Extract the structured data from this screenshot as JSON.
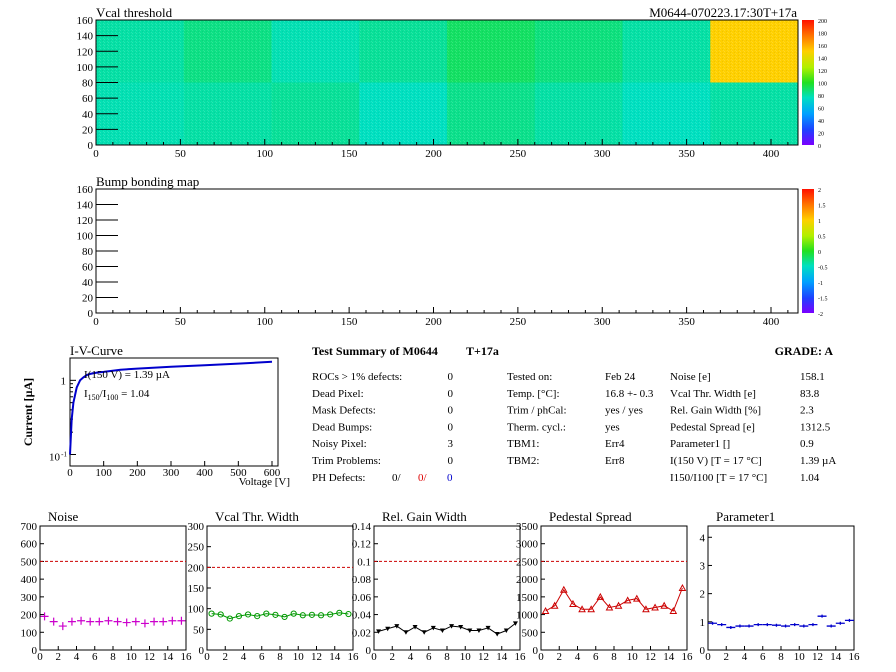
{
  "header": {
    "module_id": "M0644-070223.17:30T+17a"
  },
  "vcal_map": {
    "title": "Vcal threshold",
    "x_ticks": [
      "0",
      "50",
      "100",
      "150",
      "200",
      "250",
      "300",
      "350",
      "400"
    ],
    "y_ticks": [
      "0",
      "20",
      "40",
      "60",
      "80",
      "100",
      "120",
      "140",
      "160"
    ],
    "scale_ticks": [
      "0",
      "20",
      "40",
      "60",
      "80",
      "100",
      "120",
      "140",
      "160",
      "180",
      "200"
    ]
  },
  "bump_map": {
    "title": "Bump bonding map",
    "x_ticks": [
      "0",
      "50",
      "100",
      "150",
      "200",
      "250",
      "300",
      "350",
      "400"
    ],
    "y_ticks": [
      "0",
      "20",
      "40",
      "60",
      "80",
      "100",
      "120",
      "140",
      "160"
    ],
    "scale_ticks": [
      "-2",
      "-1.5",
      "-1",
      "-0.5",
      "0",
      "0.5",
      "1",
      "1.5",
      "2"
    ]
  },
  "iv_curve": {
    "title": "I-V-Curve",
    "ylabel": "Current [µA]",
    "xlabel": "Voltage [V]",
    "x_ticks": [
      "0",
      "100",
      "200",
      "300",
      "400",
      "500",
      "600"
    ],
    "y_tick_labels": [
      "10",
      "-1",
      "1"
    ],
    "annotation1": "I(150 V) = 1.39 µA",
    "annotation2_a": "I",
    "annotation2_sub1": "150",
    "annotation2_b": "/I",
    "annotation2_sub2": "100",
    "annotation2_c": " =  1.04"
  },
  "summary": {
    "title": "Test Summary of M0644",
    "tag": "T+17a",
    "grade": "GRADE:  A",
    "defects": [
      {
        "label": "ROCs > 1% defects:",
        "value": "0"
      },
      {
        "label": "Dead Pixel:",
        "value": "0"
      },
      {
        "label": "Mask Defects:",
        "value": "0"
      },
      {
        "label": "Dead Bumps:",
        "value": "0"
      },
      {
        "label": "Noisy Pixel:",
        "value": "3"
      },
      {
        "label": "Trim Problems:",
        "value": "0"
      }
    ],
    "ph_label": "PH Defects:",
    "ph_values": [
      "0/",
      "0/",
      "0"
    ],
    "info": [
      {
        "label": "Tested on:",
        "value": "Feb 24"
      },
      {
        "label": "Temp. [°C]:",
        "value": "16.8 +- 0.3"
      },
      {
        "label": "Trim / phCal:",
        "value": "yes / yes"
      },
      {
        "label": "Therm. cycl.:",
        "value": "yes"
      },
      {
        "label": "TBM1:",
        "value": "Err4"
      },
      {
        "label": "TBM2:",
        "value": "Err8"
      }
    ],
    "results": [
      {
        "label": "Noise [e]",
        "value": "158.1"
      },
      {
        "label": "Vcal Thr. Width [e]",
        "value": "83.8"
      },
      {
        "label": "Rel. Gain Width [%]",
        "value": "2.3"
      },
      {
        "label": "Pedestal Spread [e]",
        "value": "1312.5"
      },
      {
        "label": "Parameter1 []",
        "value": "0.9"
      },
      {
        "label": "I(150 V) [T = 17 °C]",
        "value": "1.39 µA"
      },
      {
        "label": "I150/I100 [T = 17 °C]",
        "value": "1.04"
      }
    ]
  },
  "chart_data": [
    {
      "type": "heatmap",
      "title": "Vcal threshold",
      "xlim": [
        0,
        416
      ],
      "ylim": [
        0,
        160
      ],
      "zlim": [
        0,
        200
      ],
      "roc_mean_values": [
        [
          80,
          85,
          78,
          82,
          90,
          86,
          80,
          150
        ],
        [
          78,
          80,
          82,
          76,
          84,
          80,
          76,
          80
        ]
      ]
    },
    {
      "type": "heatmap",
      "title": "Bump bonding map",
      "xlim": [
        0,
        416
      ],
      "ylim": [
        0,
        160
      ],
      "zlim": [
        -2,
        2
      ],
      "values": "empty"
    },
    {
      "type": "line",
      "title": "I-V-Curve",
      "xlabel": "Voltage [V]",
      "ylabel": "Current [µA]",
      "yscale": "log",
      "xlim": [
        0,
        600
      ],
      "ylim": [
        0.07,
        2
      ],
      "x": [
        0,
        5,
        10,
        20,
        30,
        40,
        50,
        60,
        80,
        100,
        150,
        200,
        300,
        400,
        500,
        600
      ],
      "y": [
        0.1,
        0.3,
        0.5,
        0.8,
        1.0,
        1.1,
        1.18,
        1.22,
        1.27,
        1.3,
        1.39,
        1.44,
        1.52,
        1.6,
        1.68,
        1.78
      ]
    },
    {
      "type": "scatter",
      "title": "Noise",
      "xlim": [
        0,
        16
      ],
      "ylim": [
        0,
        700
      ],
      "threshold": 500,
      "color": "#cc00cc",
      "marker": "cross",
      "x": [
        0,
        1,
        2,
        3,
        4,
        5,
        6,
        7,
        8,
        9,
        10,
        11,
        12,
        13,
        14,
        15
      ],
      "y": [
        190,
        160,
        135,
        160,
        165,
        160,
        160,
        165,
        160,
        155,
        160,
        150,
        160,
        160,
        165,
        165
      ]
    },
    {
      "type": "scatter",
      "title": "Vcal Thr. Width",
      "xlim": [
        0,
        16
      ],
      "ylim": [
        0,
        300
      ],
      "threshold": 200,
      "color": "#009900",
      "marker": "circle",
      "x": [
        0,
        1,
        2,
        3,
        4,
        5,
        6,
        7,
        8,
        9,
        10,
        11,
        12,
        13,
        14,
        15
      ],
      "y": [
        88,
        86,
        76,
        82,
        86,
        82,
        88,
        85,
        80,
        88,
        84,
        85,
        84,
        86,
        90,
        87
      ]
    },
    {
      "type": "scatter",
      "title": "Rel. Gain Width",
      "xlim": [
        0,
        16
      ],
      "ylim": [
        0,
        0.14
      ],
      "threshold": 0.1,
      "color": "#000000",
      "marker": "triangle-down",
      "x": [
        0,
        1,
        2,
        3,
        4,
        5,
        6,
        7,
        8,
        9,
        10,
        11,
        12,
        13,
        14,
        15
      ],
      "y": [
        0.021,
        0.024,
        0.027,
        0.02,
        0.026,
        0.02,
        0.025,
        0.022,
        0.027,
        0.026,
        0.022,
        0.022,
        0.025,
        0.018,
        0.022,
        0.03
      ]
    },
    {
      "type": "scatter",
      "title": "Pedestal Spread",
      "xlim": [
        0,
        16
      ],
      "ylim": [
        0,
        3500
      ],
      "threshold": 2500,
      "color": "#cc0000",
      "marker": "triangle-up",
      "x": [
        0,
        1,
        2,
        3,
        4,
        5,
        6,
        7,
        8,
        9,
        10,
        11,
        12,
        13,
        14,
        15
      ],
      "y": [
        1100,
        1250,
        1700,
        1300,
        1150,
        1150,
        1500,
        1200,
        1250,
        1400,
        1450,
        1150,
        1200,
        1250,
        1100,
        1750
      ]
    },
    {
      "type": "scatter",
      "title": "Parameter1",
      "xlim": [
        0,
        16
      ],
      "ylim": [
        0,
        4.4
      ],
      "threshold": null,
      "color": "#0000cc",
      "marker": "hbar",
      "x": [
        0,
        1,
        2,
        3,
        4,
        5,
        6,
        7,
        8,
        9,
        10,
        11,
        12,
        13,
        14,
        15
      ],
      "y": [
        0.95,
        0.9,
        0.8,
        0.85,
        0.85,
        0.9,
        0.9,
        0.88,
        0.85,
        0.9,
        0.85,
        0.9,
        1.2,
        0.85,
        0.95,
        1.05
      ]
    }
  ],
  "small_plots": [
    {
      "title": "Noise",
      "y_ticks": [
        "0",
        "100",
        "200",
        "300",
        "400",
        "500",
        "600",
        "700"
      ]
    },
    {
      "title": "Vcal Thr. Width",
      "y_ticks": [
        "0",
        "50",
        "100",
        "150",
        "200",
        "250",
        "300"
      ]
    },
    {
      "title": "Rel. Gain Width",
      "y_ticks": [
        "0",
        "0.02",
        "0.04",
        "0.06",
        "0.08",
        "0.1",
        "0.12",
        "0.14"
      ]
    },
    {
      "title": "Pedestal Spread",
      "y_ticks": [
        "0",
        "500",
        "1000",
        "1500",
        "2000",
        "2500",
        "3000",
        "3500"
      ]
    },
    {
      "title": "Parameter1",
      "y_ticks": [
        "0",
        "1",
        "2",
        "3",
        "4"
      ]
    }
  ],
  "small_x_ticks": [
    "0",
    "2",
    "4",
    "6",
    "8",
    "10",
    "12",
    "14",
    "16"
  ]
}
